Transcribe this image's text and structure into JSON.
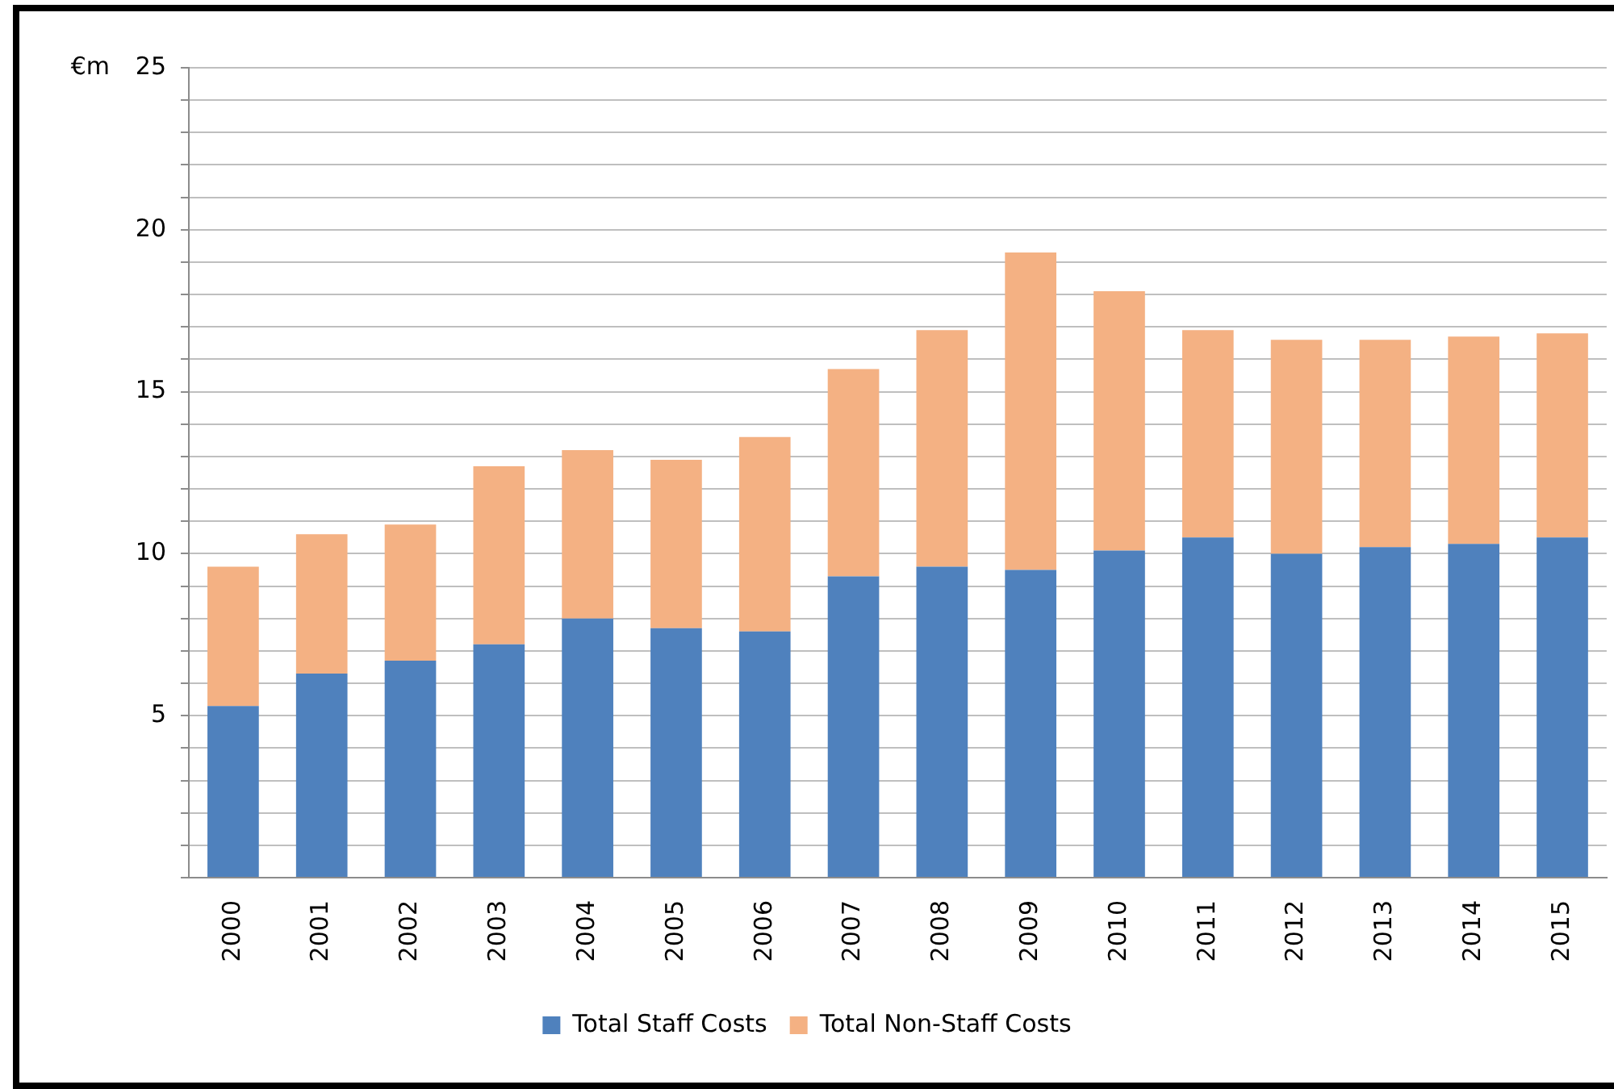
{
  "chart_data": {
    "type": "bar",
    "ylabel": "€m",
    "stacked": true,
    "grid": "y",
    "legend": "bottom",
    "categories": [
      "2000",
      "2001",
      "2002",
      "2003",
      "2004",
      "2005",
      "2006",
      "2007",
      "2008",
      "2009",
      "2010",
      "2011",
      "2012",
      "2013",
      "2014",
      "2015"
    ],
    "series": [
      {
        "name": "Total Staff Costs",
        "color": "#4f81bd",
        "values": [
          5.3,
          6.3,
          6.7,
          7.2,
          8.0,
          7.7,
          7.6,
          9.3,
          9.6,
          9.5,
          10.1,
          10.5,
          10.0,
          10.2,
          10.3,
          10.5
        ]
      },
      {
        "name": "Total Non-Staff Costs",
        "color": "#f4b183",
        "values": [
          4.3,
          4.3,
          4.2,
          5.5,
          5.2,
          5.2,
          6.0,
          6.4,
          7.3,
          9.8,
          8.0,
          6.4,
          6.6,
          6.4,
          6.4,
          6.3
        ]
      }
    ],
    "ylim": [
      0,
      25
    ],
    "yticks": [
      {
        "value": 0,
        "label": null
      },
      {
        "value": 1,
        "label": null
      },
      {
        "value": 2,
        "label": null
      },
      {
        "value": 3,
        "label": null
      },
      {
        "value": 4,
        "label": null
      },
      5,
      {
        "value": 6,
        "label": null
      },
      {
        "value": 7,
        "label": null
      },
      {
        "value": 8,
        "label": null
      },
      {
        "value": 9,
        "label": null
      },
      10,
      {
        "value": 11,
        "label": null
      },
      {
        "value": 12,
        "label": null
      },
      {
        "value": 13,
        "label": null
      },
      {
        "value": 14,
        "label": null
      },
      15,
      {
        "value": 16,
        "label": null
      },
      {
        "value": 17,
        "label": null
      },
      {
        "value": 18,
        "label": null
      },
      {
        "value": 19,
        "label": null
      },
      20,
      {
        "value": 21,
        "label": null
      },
      {
        "value": 22,
        "label": null
      },
      {
        "value": 23,
        "label": null
      },
      {
        "value": 24,
        "label": null
      },
      25
    ]
  }
}
